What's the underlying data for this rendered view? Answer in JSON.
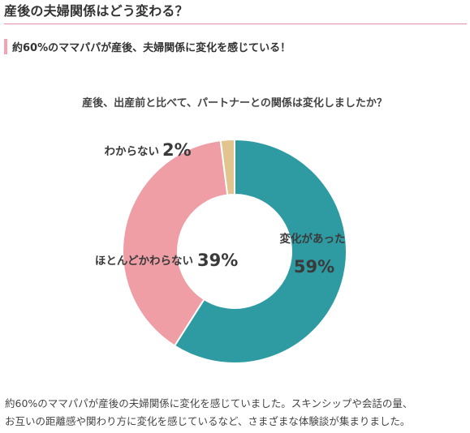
{
  "heading": "産後の夫婦関係はどう変わる？",
  "callout": "約60%のママパパが産後、夫婦関係に変化を感じている！",
  "body_lines": [
    "約60%のママパパが産後の夫婦関係に変化を感じていました。スキンシップや会話の量、",
    "お互いの距離感や関わり方に変化を感じているなど、さまざまな体験談が集まりました。"
  ],
  "colors": {
    "teal": "#2e9ba3",
    "pink": "#ee9ea4",
    "beige": "#e2c48e",
    "accent_line": "#e58fb0",
    "callout_bar": "#f3a3b4"
  },
  "chart_data": {
    "type": "pie",
    "title": "産後、出産前と比べて、パートナーとの関係は変化しましたか？",
    "donut": true,
    "slices": [
      {
        "label": "変化があった",
        "value": 59,
        "value_label": "59%",
        "color": "#2e9ba3"
      },
      {
        "label": "ほとんどかわらない",
        "value": 39,
        "value_label": "39%",
        "color": "#ee9ea4"
      },
      {
        "label": "わからない",
        "value": 2,
        "value_label": "2%",
        "color": "#e2c48e"
      }
    ]
  }
}
